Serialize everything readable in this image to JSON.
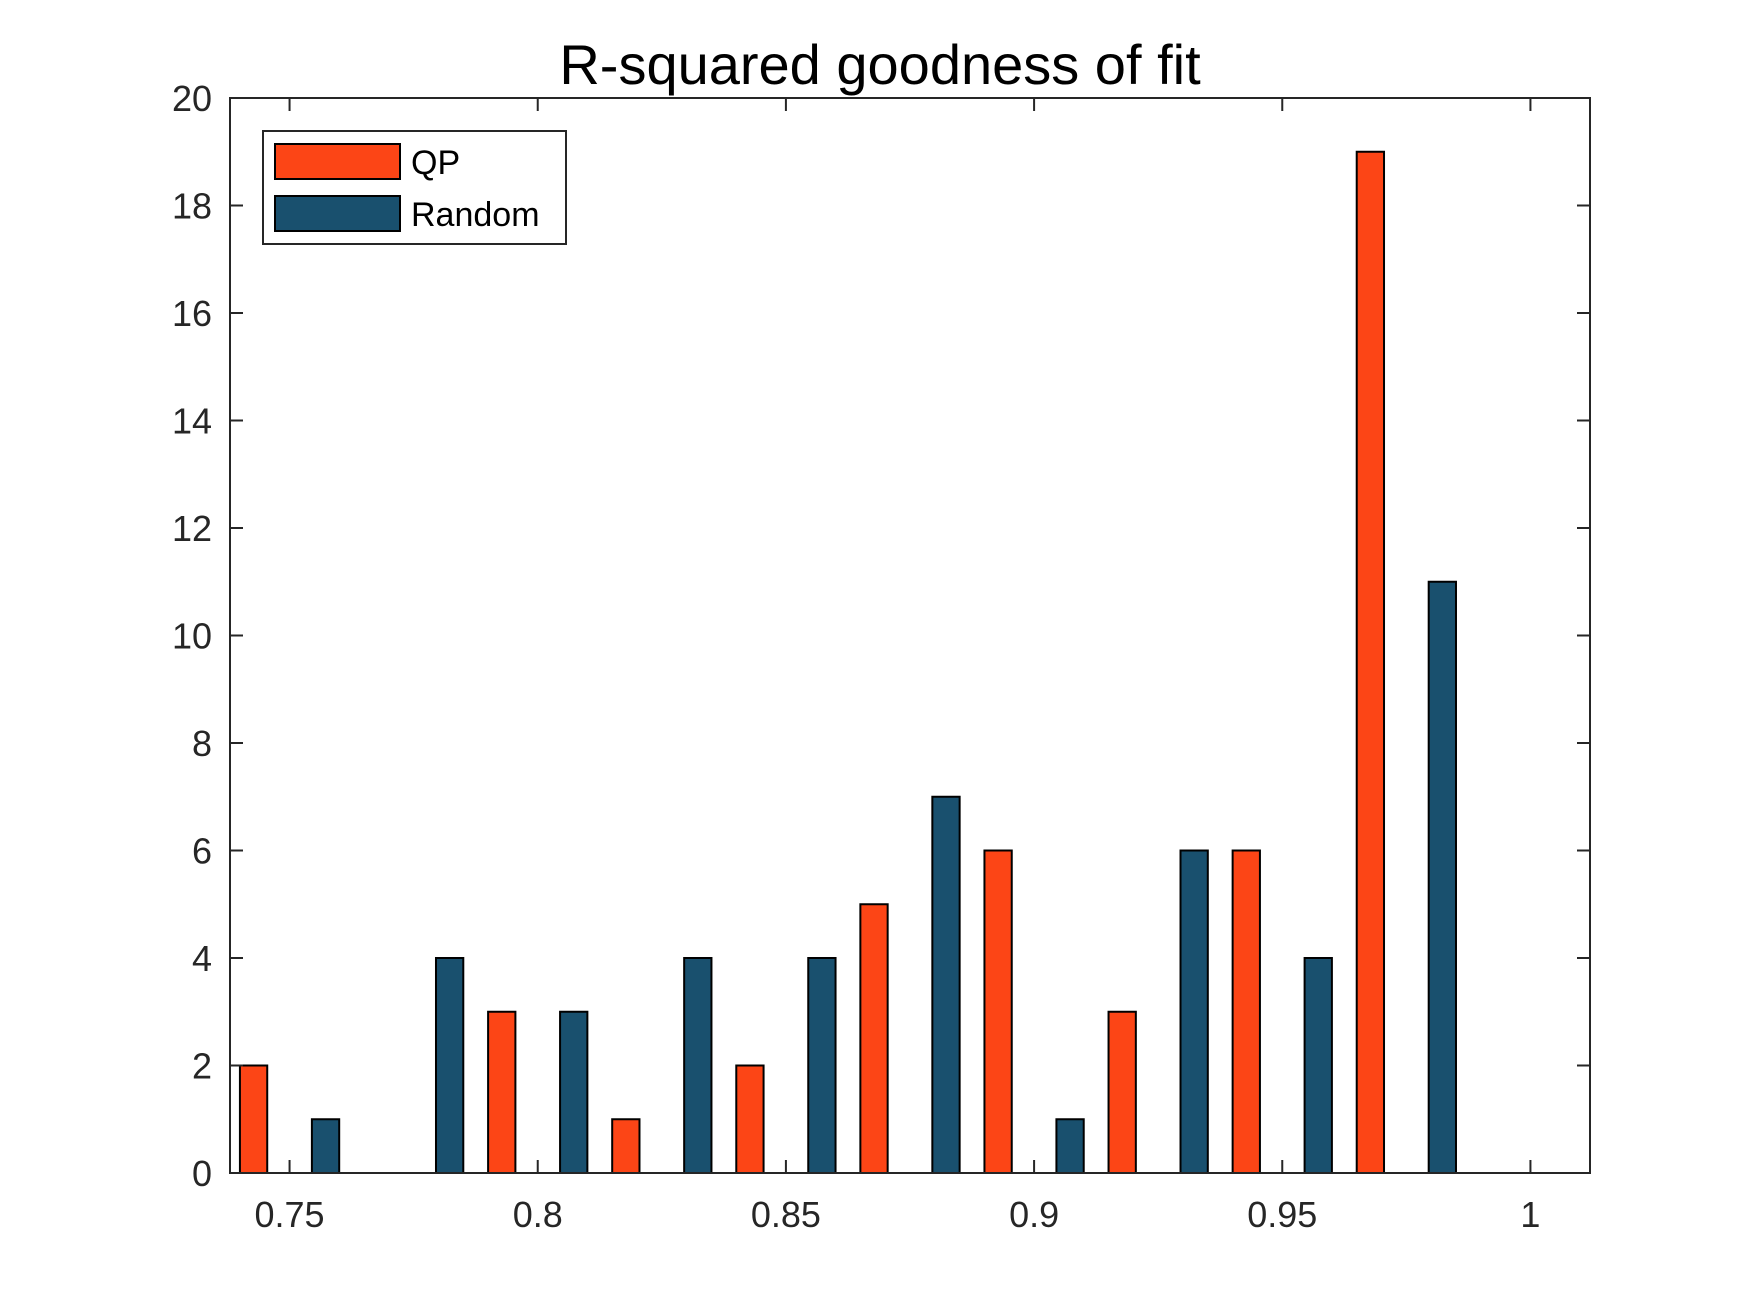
{
  "chart_data": {
    "type": "bar",
    "title": "R-squared goodness of fit",
    "xlabel": "",
    "ylabel": "",
    "xlim": [
      0.738,
      1.012
    ],
    "ylim": [
      0,
      20
    ],
    "x_ticks": [
      0.75,
      0.8,
      0.85,
      0.9,
      0.95,
      1
    ],
    "x_tick_labels": [
      "0.75",
      "0.8",
      "0.85",
      "0.9",
      "0.95",
      "1"
    ],
    "y_ticks": [
      0,
      2,
      4,
      6,
      8,
      10,
      12,
      14,
      16,
      18,
      20
    ],
    "y_tick_labels": [
      "0",
      "2",
      "4",
      "6",
      "8",
      "10",
      "12",
      "14",
      "16",
      "18",
      "20"
    ],
    "bin_centers": [
      0.75,
      0.775,
      0.8,
      0.825,
      0.85,
      0.875,
      0.9,
      0.925,
      0.95,
      0.975
    ],
    "series": [
      {
        "name": "QP",
        "color": "#FC4516",
        "values": [
          2,
          0,
          3,
          1,
          2,
          5,
          6,
          3,
          6,
          19
        ]
      },
      {
        "name": "Random",
        "color": "#19506E",
        "values": [
          1,
          4,
          3,
          4,
          4,
          7,
          1,
          6,
          4,
          11
        ]
      }
    ],
    "grid": false,
    "legend": {
      "position": "top-left",
      "entries": [
        "QP",
        "Random"
      ]
    }
  }
}
